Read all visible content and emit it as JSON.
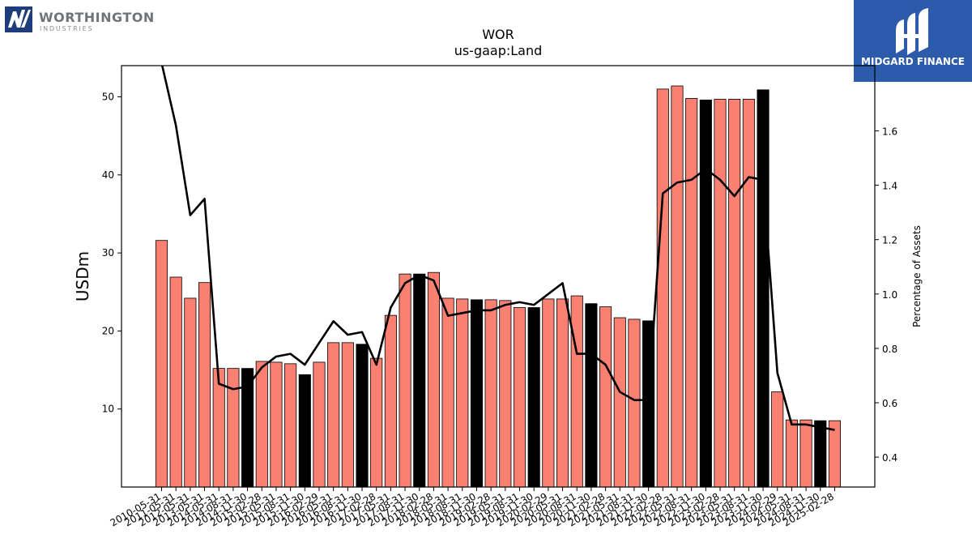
{
  "branding": {
    "left_logo_name": "WORTHINGTON",
    "left_logo_sub": "INDUSTRIES",
    "left_logo_icon": "worthington-w-mark-icon",
    "right_logo_name": "MIDGARD FINANCE",
    "right_logo_icon": "midgard-m-mark-icon",
    "right_logo_bg": "#2d5bab"
  },
  "chart_data": {
    "type": "bar",
    "title": "WOR",
    "subtitle": "us-gaap:Land",
    "ylabel": "USDm",
    "y2label": "Percentage of Assets",
    "ylim": [
      0,
      54
    ],
    "y2lim": [
      0.29,
      1.84
    ],
    "yticks": [
      10,
      20,
      30,
      40,
      50
    ],
    "y2ticks": [
      0.4,
      0.6,
      0.8,
      1.0,
      1.2,
      1.4,
      1.6
    ],
    "bar_color": "#fa8072",
    "highlight_color": "#000000",
    "line_color": "#000000",
    "categories": [
      "2010-05-31",
      "2011-05-31",
      "2012-05-31",
      "2013-05-31",
      "2014-05-31",
      "2014-08-31",
      "2014-11-30",
      "2015-02-28",
      "2015-05-31",
      "2015-08-31",
      "2015-11-30",
      "2016-02-29",
      "2016-05-31",
      "2016-08-31",
      "2016-11-30",
      "2017-02-28",
      "2017-05-31",
      "2017-08-31",
      "2017-11-30",
      "2018-02-28",
      "2018-05-31",
      "2018-08-31",
      "2018-11-30",
      "2019-02-28",
      "2019-05-31",
      "2019-08-31",
      "2019-11-30",
      "2020-02-29",
      "2020-05-31",
      "2020-08-31",
      "2020-11-30",
      "2021-02-28",
      "2021-05-31",
      "2021-08-31",
      "2021-11-30",
      "2022-02-28",
      "2022-05-31",
      "2022-08-31",
      "2022-11-30",
      "2023-02-28",
      "2023-05-31",
      "2023-08-31",
      "2023-11-30",
      "2024-02-29",
      "2024-05-31",
      "2024-08-31",
      "2024-11-30",
      "2025-02-28"
    ],
    "series": [
      {
        "type": "bar",
        "axis": "left",
        "values": [
          31.6,
          26.9,
          24.2,
          26.2,
          15.2,
          15.2,
          15.2,
          16.1,
          16.0,
          15.8,
          14.4,
          16.0,
          18.5,
          18.5,
          18.3,
          16.5,
          22.0,
          27.3,
          27.3,
          27.5,
          24.2,
          24.1,
          24.0,
          24.0,
          23.9,
          23.0,
          23.0,
          24.1,
          24.1,
          24.5,
          23.5,
          23.1,
          21.7,
          21.5,
          21.3,
          51.0,
          51.4,
          49.8,
          49.6,
          49.7,
          49.7,
          49.7,
          50.9,
          12.2,
          8.6,
          8.6,
          8.5,
          8.5
        ],
        "highlight": [
          false,
          false,
          false,
          false,
          false,
          false,
          true,
          false,
          false,
          false,
          true,
          false,
          false,
          false,
          true,
          false,
          false,
          false,
          true,
          false,
          false,
          false,
          true,
          false,
          false,
          false,
          true,
          false,
          false,
          false,
          true,
          false,
          false,
          false,
          true,
          false,
          false,
          false,
          true,
          false,
          false,
          false,
          true,
          false,
          false,
          false,
          true,
          false
        ]
      },
      {
        "type": "line",
        "axis": "right",
        "values": [
          1.85,
          1.62,
          1.29,
          1.35,
          0.67,
          0.65,
          0.66,
          0.73,
          0.77,
          0.78,
          0.74,
          0.82,
          0.9,
          0.85,
          0.86,
          0.74,
          0.95,
          1.04,
          1.07,
          1.05,
          0.92,
          0.93,
          0.94,
          0.94,
          0.96,
          0.97,
          0.96,
          1.0,
          1.04,
          0.78,
          0.78,
          0.74,
          0.64,
          0.61,
          0.61,
          1.37,
          1.41,
          1.42,
          1.46,
          1.42,
          1.36,
          1.43,
          1.42,
          0.71,
          0.52,
          0.52,
          0.51,
          0.5
        ]
      }
    ]
  }
}
